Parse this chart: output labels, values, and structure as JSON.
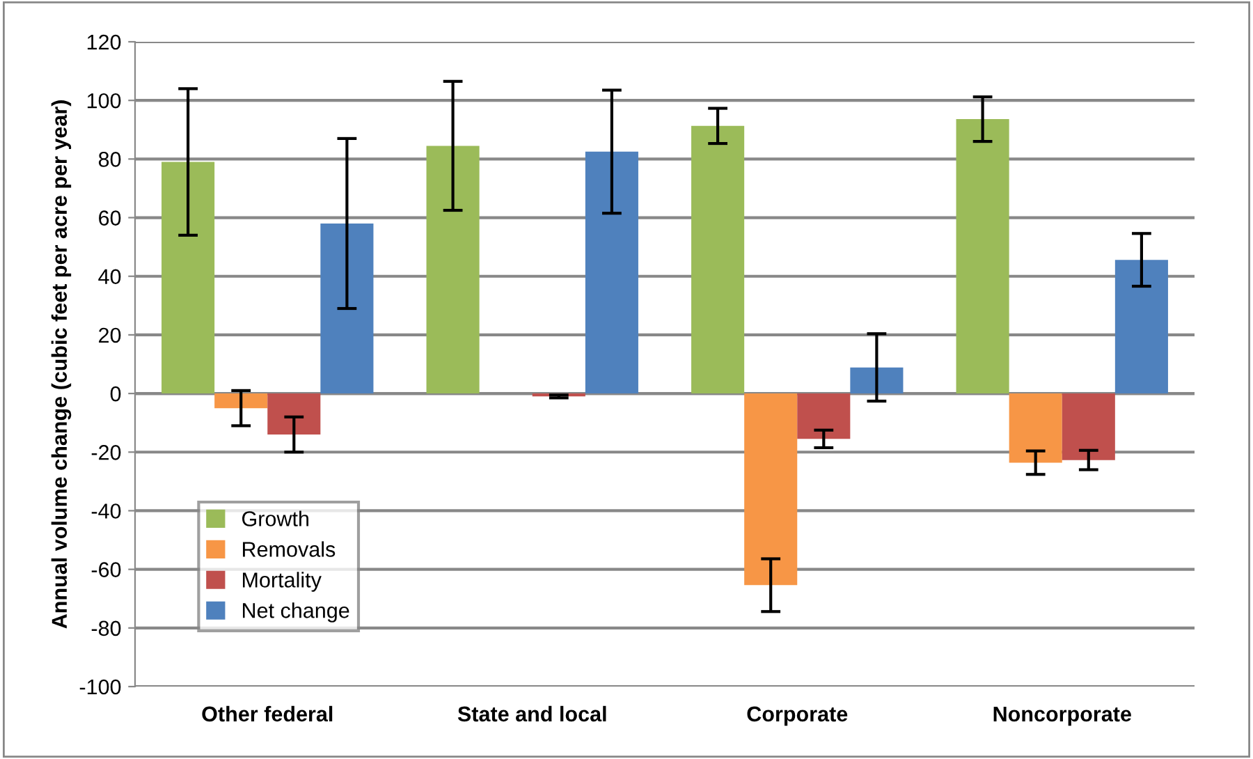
{
  "chart_data": {
    "type": "bar",
    "ylabel": "Annual volume change (cubic feet per acre per year)",
    "categories": [
      "Other federal",
      "State and local",
      "Corporate",
      "Noncorporate"
    ],
    "series": [
      {
        "name": "Growth",
        "color": "#9bbb59",
        "values": [
          79,
          84.5,
          91.3,
          93.6
        ],
        "errors": [
          25,
          22,
          6,
          7.6
        ]
      },
      {
        "name": "Removals",
        "color": "#f79646",
        "values": [
          -5,
          null,
          -65.4,
          -23.6
        ],
        "errors": [
          6,
          null,
          9,
          4
        ]
      },
      {
        "name": "Mortality",
        "color": "#c0504d",
        "values": [
          -14,
          -1,
          -15.5,
          -22.7
        ],
        "errors": [
          6,
          0.5,
          3,
          3.3
        ]
      },
      {
        "name": "Net change",
        "color": "#4f81bd",
        "values": [
          58,
          82.5,
          8.9,
          45.6
        ],
        "errors": [
          29,
          21,
          11.5,
          9
        ]
      }
    ],
    "ylim": [
      -100,
      120
    ],
    "yticks": [
      -100,
      -80,
      -60,
      -40,
      -20,
      0,
      20,
      40,
      60,
      80,
      100,
      120
    ],
    "grid": "y",
    "legend": "bottom left"
  }
}
